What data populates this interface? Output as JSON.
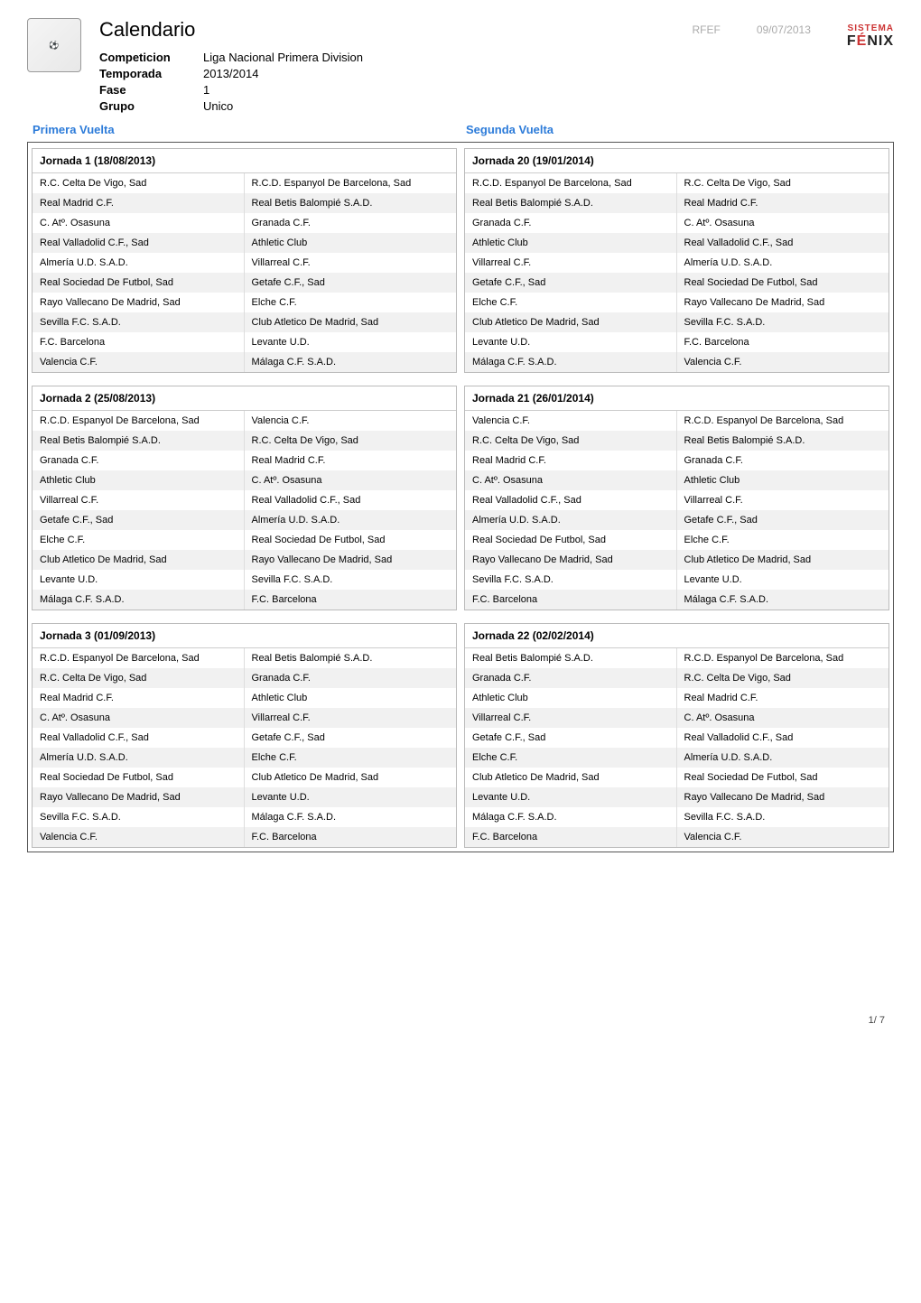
{
  "header": {
    "page_title": "Calendario",
    "federation_abbrev": "RFEF",
    "date": "09/07/2013",
    "brand_line1": "SISTEMA",
    "brand_line2_pre": "F",
    "brand_line2_accent": "É",
    "brand_line2_post": "NIX",
    "meta": {
      "competicion_label": "Competicion",
      "competicion_value": "Liga Nacional Primera Division",
      "temporada_label": "Temporada",
      "temporada_value": "2013/2014",
      "fase_label": "Fase",
      "fase_value": "1",
      "grupo_label": "Grupo",
      "grupo_value": "Unico"
    }
  },
  "vuelta": {
    "primera": "Primera Vuelta",
    "segunda": "Segunda Vuelta"
  },
  "colors": {
    "vuelta_text": "#2c7bd9",
    "header_grey": "#aaaaaa",
    "row_alt_bg": "#f1f1f1"
  },
  "footer": {
    "page": "1/ 7"
  },
  "jornadas": [
    {
      "left_title": "Jornada 1 (18/08/2013)",
      "right_title": "Jornada 20 (19/01/2014)",
      "left_matches": [
        [
          "R.C. Celta De Vigo, Sad",
          "R.C.D. Espanyol De Barcelona, Sad"
        ],
        [
          "Real Madrid C.F.",
          "Real Betis Balompié S.A.D."
        ],
        [
          "C. Atº. Osasuna",
          "Granada C.F."
        ],
        [
          "Real Valladolid C.F., Sad",
          "Athletic Club"
        ],
        [
          "Almería U.D. S.A.D.",
          "Villarreal C.F."
        ],
        [
          "Real Sociedad De Futbol, Sad",
          "Getafe C.F., Sad"
        ],
        [
          "Rayo Vallecano De Madrid, Sad",
          "Elche C.F."
        ],
        [
          "Sevilla F.C. S.A.D.",
          "Club Atletico De Madrid, Sad"
        ],
        [
          "F.C. Barcelona",
          "Levante U.D."
        ],
        [
          "Valencia C.F.",
          "Málaga C.F. S.A.D."
        ]
      ],
      "right_matches": [
        [
          "R.C.D. Espanyol De Barcelona, Sad",
          "R.C. Celta De Vigo, Sad"
        ],
        [
          "Real Betis Balompié S.A.D.",
          "Real Madrid C.F."
        ],
        [
          "Granada C.F.",
          "C. Atº. Osasuna"
        ],
        [
          "Athletic Club",
          "Real Valladolid C.F., Sad"
        ],
        [
          "Villarreal C.F.",
          "Almería U.D. S.A.D."
        ],
        [
          "Getafe C.F., Sad",
          "Real Sociedad De Futbol, Sad"
        ],
        [
          "Elche C.F.",
          "Rayo Vallecano De Madrid, Sad"
        ],
        [
          "Club Atletico De Madrid, Sad",
          "Sevilla F.C. S.A.D."
        ],
        [
          "Levante U.D.",
          "F.C. Barcelona"
        ],
        [
          "Málaga C.F. S.A.D.",
          "Valencia C.F."
        ]
      ]
    },
    {
      "left_title": "Jornada 2 (25/08/2013)",
      "right_title": "Jornada 21 (26/01/2014)",
      "left_matches": [
        [
          "R.C.D. Espanyol De Barcelona, Sad",
          "Valencia C.F."
        ],
        [
          "Real Betis Balompié S.A.D.",
          "R.C. Celta De Vigo, Sad"
        ],
        [
          "Granada C.F.",
          "Real Madrid C.F."
        ],
        [
          "Athletic Club",
          "C. Atº. Osasuna"
        ],
        [
          "Villarreal C.F.",
          "Real Valladolid C.F., Sad"
        ],
        [
          "Getafe C.F., Sad",
          "Almería U.D. S.A.D."
        ],
        [
          "Elche C.F.",
          "Real Sociedad De Futbol, Sad"
        ],
        [
          "Club Atletico De Madrid, Sad",
          "Rayo Vallecano De Madrid, Sad"
        ],
        [
          "Levante U.D.",
          "Sevilla F.C. S.A.D."
        ],
        [
          "Málaga C.F. S.A.D.",
          "F.C. Barcelona"
        ]
      ],
      "right_matches": [
        [
          "Valencia C.F.",
          "R.C.D. Espanyol De Barcelona, Sad"
        ],
        [
          "R.C. Celta De Vigo, Sad",
          "Real Betis Balompié S.A.D."
        ],
        [
          "Real Madrid C.F.",
          "Granada C.F."
        ],
        [
          "C. Atº. Osasuna",
          "Athletic Club"
        ],
        [
          "Real Valladolid C.F., Sad",
          "Villarreal C.F."
        ],
        [
          "Almería U.D. S.A.D.",
          "Getafe C.F., Sad"
        ],
        [
          "Real Sociedad De Futbol, Sad",
          "Elche C.F."
        ],
        [
          "Rayo Vallecano De Madrid, Sad",
          "Club Atletico De Madrid, Sad"
        ],
        [
          "Sevilla F.C. S.A.D.",
          "Levante U.D."
        ],
        [
          "F.C. Barcelona",
          "Málaga C.F. S.A.D."
        ]
      ]
    },
    {
      "left_title": "Jornada 3 (01/09/2013)",
      "right_title": "Jornada 22 (02/02/2014)",
      "left_matches": [
        [
          "R.C.D. Espanyol De Barcelona, Sad",
          "Real Betis Balompié S.A.D."
        ],
        [
          "R.C. Celta De Vigo, Sad",
          "Granada C.F."
        ],
        [
          "Real Madrid C.F.",
          "Athletic Club"
        ],
        [
          "C. Atº. Osasuna",
          "Villarreal C.F."
        ],
        [
          "Real Valladolid C.F., Sad",
          "Getafe C.F., Sad"
        ],
        [
          "Almería U.D. S.A.D.",
          "Elche C.F."
        ],
        [
          "Real Sociedad De Futbol, Sad",
          "Club Atletico De Madrid, Sad"
        ],
        [
          "Rayo Vallecano De Madrid, Sad",
          "Levante U.D."
        ],
        [
          "Sevilla F.C. S.A.D.",
          "Málaga C.F. S.A.D."
        ],
        [
          "Valencia C.F.",
          "F.C. Barcelona"
        ]
      ],
      "right_matches": [
        [
          "Real Betis Balompié S.A.D.",
          "R.C.D. Espanyol De Barcelona, Sad"
        ],
        [
          "Granada C.F.",
          "R.C. Celta De Vigo, Sad"
        ],
        [
          "Athletic Club",
          "Real Madrid C.F."
        ],
        [
          "Villarreal C.F.",
          "C. Atº. Osasuna"
        ],
        [
          "Getafe C.F., Sad",
          "Real Valladolid C.F., Sad"
        ],
        [
          "Elche C.F.",
          "Almería U.D. S.A.D."
        ],
        [
          "Club Atletico De Madrid, Sad",
          "Real Sociedad De Futbol, Sad"
        ],
        [
          "Levante U.D.",
          "Rayo Vallecano De Madrid, Sad"
        ],
        [
          "Málaga C.F. S.A.D.",
          "Sevilla F.C. S.A.D."
        ],
        [
          "F.C. Barcelona",
          "Valencia C.F."
        ]
      ]
    }
  ]
}
